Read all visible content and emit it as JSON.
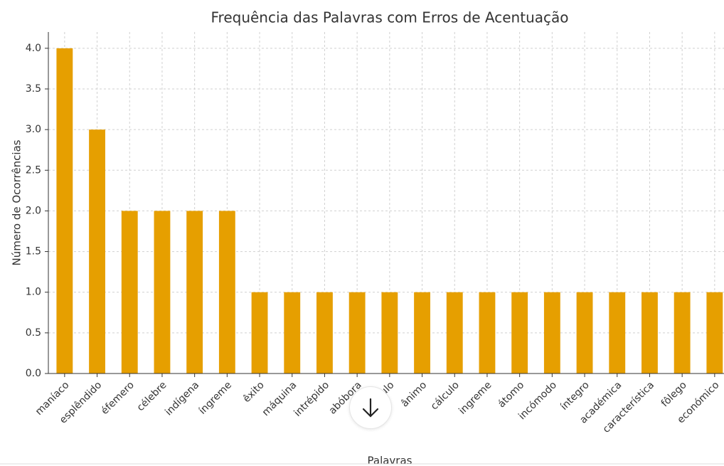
{
  "chart_data": {
    "type": "bar",
    "title": "Frequência das Palavras com Erros de Acentuação",
    "xlabel": "Palavras",
    "ylabel": "Número de Ocorrências",
    "categories": [
      "maníaco",
      "esplêndido",
      "éfemero",
      "célebre",
      "indígena",
      "íngreme",
      "êxito",
      "máquina",
      "intrépido",
      "abóbora",
      "círculo",
      "ânimo",
      "cálculo",
      "ingreme",
      "átomo",
      "incómodo",
      "íntegro",
      "académica",
      "característica",
      "fôlego",
      "económico"
    ],
    "values": [
      4,
      3,
      2,
      2,
      2,
      2,
      1,
      1,
      1,
      1,
      1,
      1,
      1,
      1,
      1,
      1,
      1,
      1,
      1,
      1,
      1
    ],
    "color": "#e69f00",
    "ylim": [
      0,
      4.2
    ],
    "yticks": [
      {
        "value": 0,
        "label": "0.0"
      },
      {
        "value": 0.5,
        "label": "0.5"
      },
      {
        "value": 1,
        "label": "1.0"
      },
      {
        "value": 1.5,
        "label": "1.5"
      },
      {
        "value": 2,
        "label": "2.0"
      },
      {
        "value": 2.5,
        "label": "2.5"
      },
      {
        "value": 3,
        "label": "3.0"
      },
      {
        "value": 3.5,
        "label": "3.5"
      },
      {
        "value": 4,
        "label": "4.0"
      }
    ],
    "grid": true
  }
}
